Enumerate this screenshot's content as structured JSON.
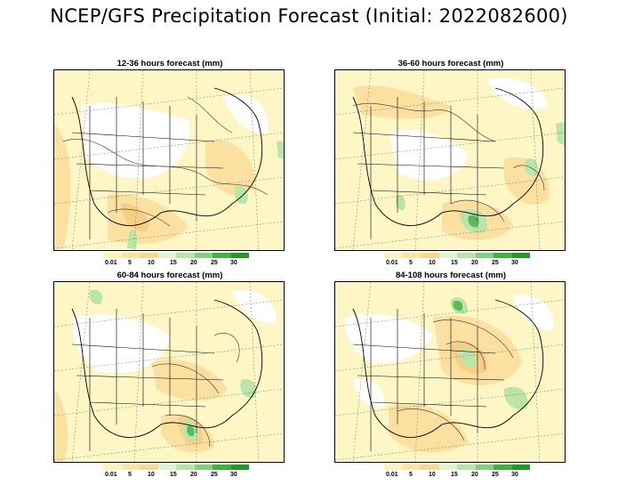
{
  "title": "NCEP/GFS Precipitation Forecast (Initial: 2022082600)",
  "colorbar": {
    "labels": [
      "0.01",
      "5",
      "10",
      "15",
      "20",
      "25",
      "30"
    ],
    "colors": [
      "#fff3b8",
      "#fde69a",
      "#fcd88a",
      "#dff5d2",
      "#b5e6a7",
      "#7fd17b",
      "#3fb23f",
      "#1f9a28"
    ]
  },
  "panels": [
    {
      "title": "12-36 hours forecast (mm)"
    },
    {
      "title": "36-60 hours forecast (mm)"
    },
    {
      "title": "60-84 hours forecast (mm)"
    },
    {
      "title": "84-108 hours forecast (mm)"
    }
  ],
  "map_colors": {
    "light": "#fff6c6",
    "mid": "#fbe0a0",
    "heavy": "#f7cf84",
    "green": "#b9e6a8",
    "dkgreen": "#5cb85a",
    "none": "#ffffff"
  }
}
